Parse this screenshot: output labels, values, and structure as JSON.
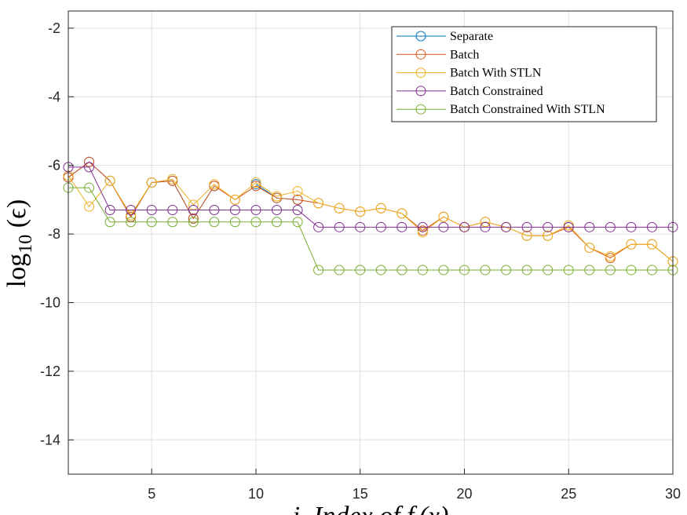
{
  "chart_data": {
    "type": "line",
    "title": "",
    "xlabel": "i, Index of f_i(x)",
    "ylabel": "log10(ε)",
    "xlim": [
      1,
      30
    ],
    "ylim": [
      -15,
      -1.5
    ],
    "xticks": [
      5,
      10,
      15,
      20,
      25,
      30
    ],
    "yticks": [
      -2,
      -4,
      -6,
      -8,
      -10,
      -12,
      -14
    ],
    "grid": true,
    "legend_position": "top-right",
    "series": [
      {
        "name": "Separate",
        "color": "#0072BD",
        "x": [
          1,
          2,
          3,
          4,
          5,
          6,
          7,
          8,
          9,
          10,
          11,
          12
        ],
        "y": [
          -6.35,
          -5.9,
          -6.45,
          -7.5,
          -6.5,
          -6.45,
          -7.55,
          -6.6,
          null,
          -6.55,
          -6.95,
          -7.0
        ]
      },
      {
        "name": "Batch",
        "color": "#D95319",
        "x": [
          1,
          2,
          3,
          4,
          5,
          6,
          7,
          8,
          9,
          10,
          11,
          12,
          13,
          14,
          15,
          16,
          17,
          18,
          19,
          20,
          21,
          22,
          23,
          24,
          25,
          26,
          27,
          28,
          29,
          30
        ],
        "y": [
          -6.35,
          -5.9,
          -6.45,
          -7.5,
          -6.5,
          -6.45,
          -7.55,
          -6.6,
          -7.0,
          -6.6,
          -6.95,
          -7.0,
          -7.1,
          -7.25,
          -7.35,
          -7.25,
          -7.4,
          -7.9,
          -7.5,
          -7.8,
          -7.65,
          -7.8,
          -8.05,
          -8.05,
          -7.8,
          -8.4,
          -8.7,
          -8.3,
          -8.3,
          -8.8
        ]
      },
      {
        "name": "Batch With STLN",
        "color": "#EDB120",
        "x": [
          1,
          2,
          3,
          4,
          5,
          6,
          7,
          8,
          9,
          10,
          11,
          12,
          13,
          14,
          15,
          16,
          17,
          18,
          19,
          20,
          21,
          22,
          23,
          24,
          25,
          26,
          27,
          28,
          29,
          30
        ],
        "y": [
          -6.3,
          -7.2,
          -6.45,
          -7.45,
          -6.5,
          -6.4,
          -7.15,
          -6.55,
          -7.0,
          -6.5,
          -6.9,
          -6.75,
          -7.1,
          -7.25,
          -7.35,
          -7.25,
          -7.4,
          -7.95,
          -7.5,
          -7.8,
          -7.65,
          -7.8,
          -8.05,
          -8.05,
          -7.75,
          -8.4,
          -8.65,
          -8.3,
          -8.3,
          -8.8
        ]
      },
      {
        "name": "Batch Constrained",
        "color": "#7E2F8E",
        "x": [
          1,
          2,
          3,
          4,
          5,
          6,
          7,
          8,
          9,
          10,
          11,
          12,
          13,
          14,
          15,
          16,
          17,
          18,
          19,
          20,
          21,
          22,
          23,
          24,
          25,
          26,
          27,
          28,
          29,
          30
        ],
        "y": [
          -6.05,
          -6.05,
          -7.3,
          -7.3,
          -7.3,
          -7.3,
          -7.3,
          -7.3,
          -7.3,
          -7.3,
          -7.3,
          -7.3,
          -7.8,
          -7.8,
          -7.8,
          -7.8,
          -7.8,
          -7.8,
          -7.8,
          -7.8,
          -7.8,
          -7.8,
          -7.8,
          -7.8,
          -7.8,
          -7.8,
          -7.8,
          -7.8,
          -7.8,
          -7.8
        ]
      },
      {
        "name": "Batch Constrained With STLN",
        "color": "#77AC30",
        "x": [
          1,
          2,
          3,
          4,
          5,
          6,
          7,
          8,
          9,
          10,
          11,
          12,
          13,
          14,
          15,
          16,
          17,
          18,
          19,
          20,
          21,
          22,
          23,
          24,
          25,
          26,
          27,
          28,
          29,
          30
        ],
        "y": [
          -6.65,
          -6.65,
          -7.65,
          -7.65,
          -7.65,
          -7.65,
          -7.65,
          -7.65,
          -7.65,
          -7.65,
          -7.65,
          -7.65,
          -9.05,
          -9.05,
          -9.05,
          -9.05,
          -9.05,
          -9.05,
          -9.05,
          -9.05,
          -9.05,
          -9.05,
          -9.05,
          -9.05,
          -9.05,
          -9.05,
          -9.05,
          -9.05,
          -9.05,
          -9.05
        ]
      }
    ]
  }
}
